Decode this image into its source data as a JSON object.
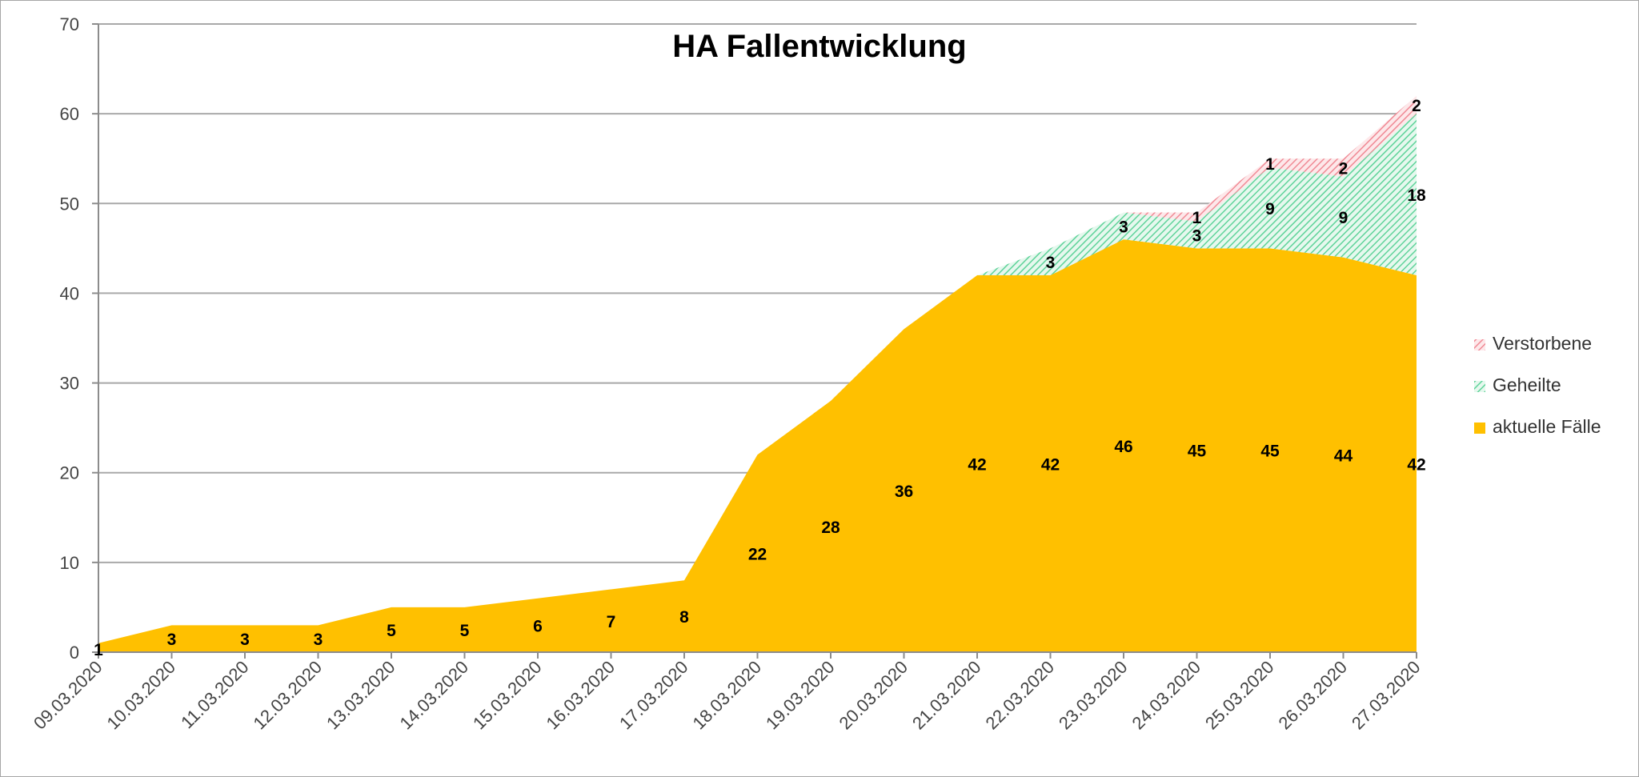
{
  "chart_data": {
    "type": "area",
    "stacked": true,
    "title": "HA Fallentwicklung",
    "xlabel": "",
    "ylabel": "",
    "ylim": [
      0,
      70
    ],
    "yticks": [
      0,
      10,
      20,
      30,
      40,
      50,
      60,
      70
    ],
    "grid": true,
    "legend_position": "right",
    "x": [
      "09.03.2020",
      "10.03.2020",
      "11.03.2020",
      "12.03.2020",
      "13.03.2020",
      "14.03.2020",
      "15.03.2020",
      "16.03.2020",
      "17.03.2020",
      "18.03.2020",
      "19.03.2020",
      "20.03.2020",
      "21.03.2020",
      "22.03.2020",
      "23.03.2020",
      "24.03.2020",
      "25.03.2020",
      "26.03.2020",
      "27.03.2020"
    ],
    "series": [
      {
        "name": "aktuelle Fälle",
        "color": "#ffc000",
        "pattern": "solid",
        "values": [
          1,
          3,
          3,
          3,
          5,
          5,
          6,
          7,
          8,
          22,
          28,
          36,
          42,
          42,
          46,
          45,
          45,
          44,
          42
        ],
        "labels": [
          "1",
          "3",
          "3",
          "3",
          "5",
          "5",
          "6",
          "7",
          "8",
          "22",
          "28",
          "36",
          "42",
          "42",
          "46",
          "45",
          "45",
          "44",
          "42"
        ]
      },
      {
        "name": "Geheilte",
        "color": "#5fd39a",
        "pattern": "diagonal-hatch",
        "values": [
          0,
          0,
          0,
          0,
          0,
          0,
          0,
          0,
          0,
          0,
          0,
          0,
          0,
          3,
          3,
          3,
          9,
          9,
          18
        ],
        "labels": [
          "",
          "",
          "",
          "",
          "",
          "",
          "",
          "",
          "",
          "",
          "",
          "",
          "",
          "3",
          "3",
          "3",
          "9",
          "9",
          "18"
        ]
      },
      {
        "name": "Verstorbene",
        "color": "#f4a0a8",
        "pattern": "diagonal-hatch",
        "values": [
          0,
          0,
          0,
          0,
          0,
          0,
          0,
          0,
          0,
          0,
          0,
          0,
          0,
          0,
          0,
          1,
          1,
          2,
          2
        ],
        "labels": [
          "",
          "",
          "",
          "",
          "",
          "",
          "",
          "",
          "",
          "",
          "",
          "",
          "",
          "",
          "",
          "1",
          "1",
          "2",
          "2"
        ]
      }
    ],
    "legend_order": [
      "Verstorbene",
      "Geheilte",
      "aktuelle Fälle"
    ]
  }
}
